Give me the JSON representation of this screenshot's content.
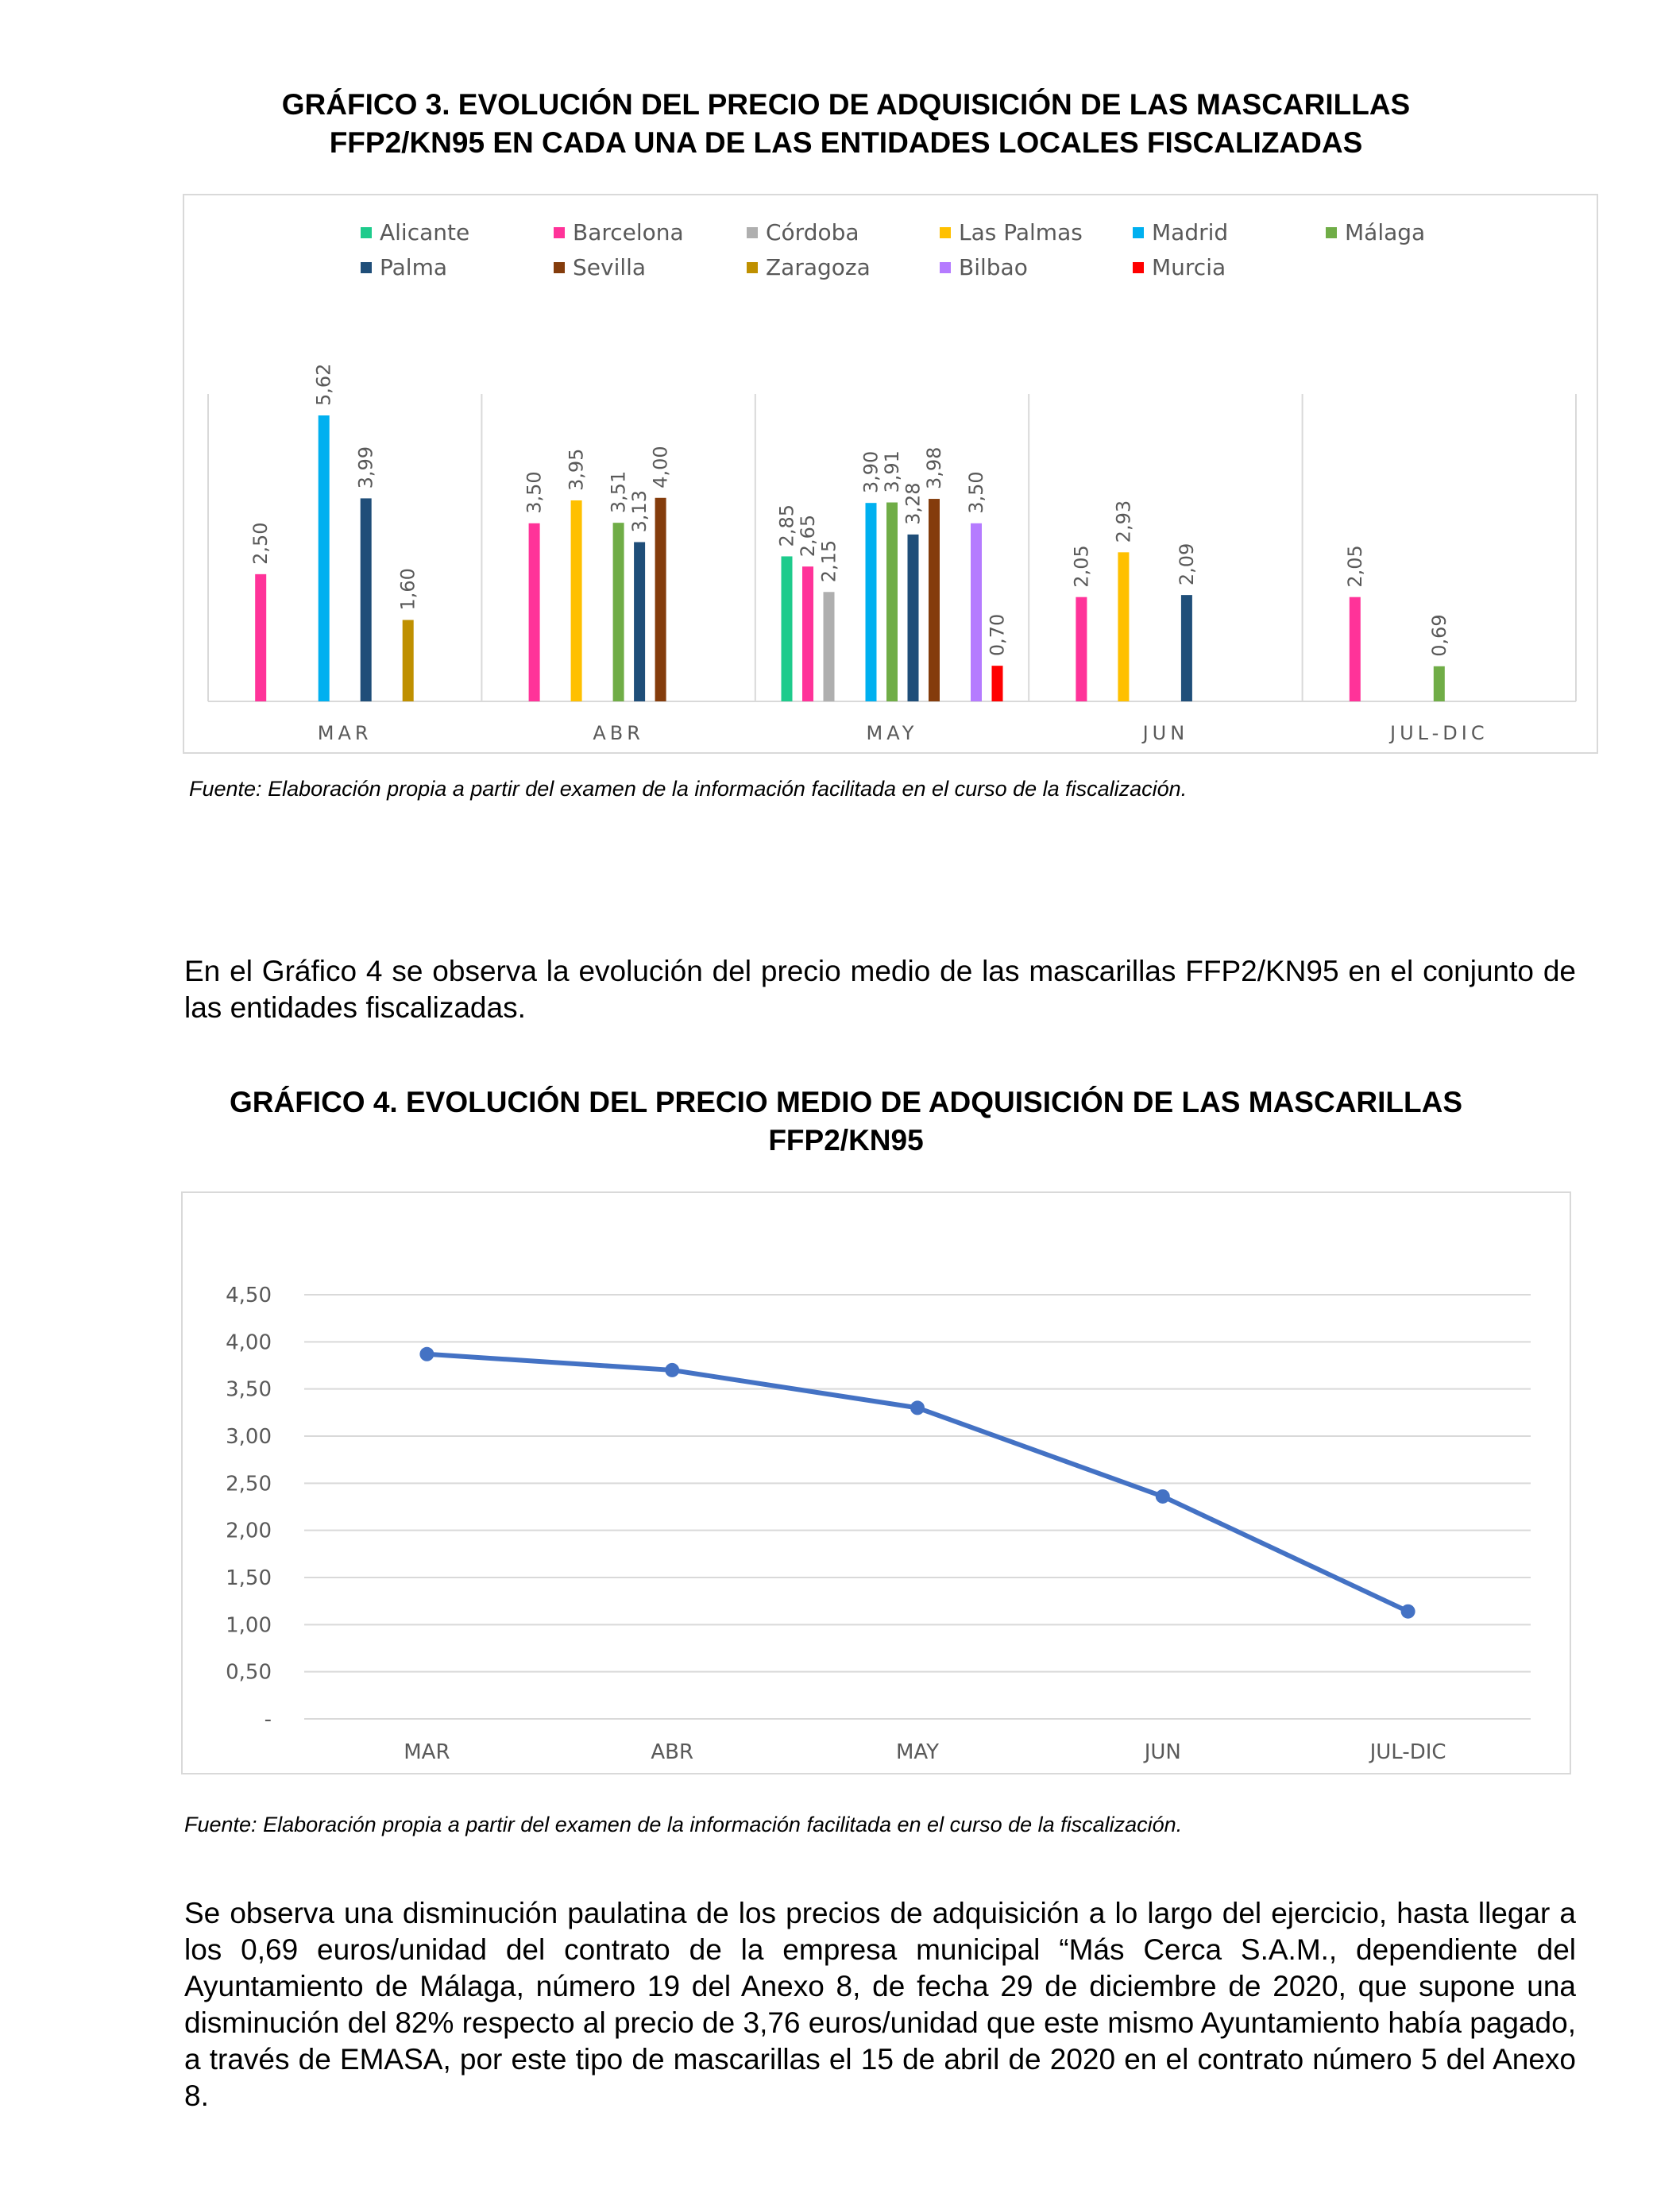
{
  "chart3": {
    "title_line1": "GRÁFICO 3. EVOLUCIÓN DEL PRECIO DE ADQUISICIÓN DE LAS MASCARILLAS",
    "title_line2": "FFP2/KN95 EN CADA UNA DE LAS ENTIDADES LOCALES FISCALIZADAS",
    "source_label": "Fuente:",
    "source_text": " Elaboración propia a partir del examen de la información facilitada en el curso de la fiscalización."
  },
  "intro_paragraph": "En el Gráfico 4 se observa la evolución del precio medio de las mascarillas FFP2/KN95 en el conjunto de las entidades fiscalizadas.",
  "chart4": {
    "title_line1": "GRÁFICO 4. EVOLUCIÓN DEL PRECIO MEDIO DE ADQUISICIÓN DE LAS MASCARILLAS",
    "title_line2": "FFP2/KN95",
    "source_label": "Fuente:",
    "source_text": " Elaboración propia a partir del examen de la información facilitada en el curso de la fiscalización."
  },
  "closing_paragraph": "Se observa una disminución paulatina de los precios de adquisición a lo largo del ejercicio, hasta llegar a los 0,69 euros/unidad del contrato de la empresa municipal “Más Cerca S.A.M., dependiente del Ayuntamiento de Málaga, número 19 del Anexo 8, de fecha 29 de diciembre de 2020, que supone una disminución del 82% respecto al precio de 3,76 euros/unidad que este mismo Ayuntamiento había pagado, a través de EMASA, por este tipo de mascarillas el 15 de abril de 2020 en el contrato número 5 del Anexo 8.",
  "chart_data": [
    {
      "type": "bar",
      "categories": [
        "MAR",
        "ABR",
        "MAY",
        "JUN",
        "JUL-DIC"
      ],
      "legend_position": "top",
      "grid": false,
      "series": [
        {
          "name": "Alicante",
          "color": "#1ECB8C",
          "values": [
            null,
            null,
            2.85,
            null,
            null
          ]
        },
        {
          "name": "Barcelona",
          "color": "#FF3399",
          "values": [
            2.5,
            3.5,
            2.65,
            2.05,
            2.05
          ]
        },
        {
          "name": "Córdoba",
          "color": "#AFAFAF",
          "values": [
            null,
            null,
            2.15,
            null,
            null
          ]
        },
        {
          "name": "Las Palmas",
          "color": "#FFC000",
          "values": [
            null,
            3.95,
            null,
            2.93,
            null
          ]
        },
        {
          "name": "Madrid",
          "color": "#00B0F0",
          "values": [
            5.62,
            null,
            3.9,
            null,
            null
          ]
        },
        {
          "name": "Málaga",
          "color": "#70AD47",
          "values": [
            null,
            3.51,
            3.91,
            null,
            0.69
          ]
        },
        {
          "name": "Palma",
          "color": "#1F4E79",
          "values": [
            3.99,
            3.13,
            3.28,
            2.09,
            null
          ]
        },
        {
          "name": "Sevilla",
          "color": "#843C0C",
          "values": [
            null,
            4.0,
            3.98,
            null,
            null
          ]
        },
        {
          "name": "Zaragoza",
          "color": "#BF9000",
          "values": [
            1.6,
            null,
            null,
            null,
            null
          ]
        },
        {
          "name": "Bilbao",
          "color": "#B57BFF",
          "values": [
            null,
            null,
            3.5,
            null,
            null
          ]
        },
        {
          "name": "Murcia",
          "color": "#FF0000",
          "values": [
            null,
            null,
            0.7,
            null,
            null
          ]
        }
      ],
      "value_labels": [
        [
          "",
          "2,50",
          "",
          "",
          "5,62",
          "",
          "3,99",
          "",
          "1,60",
          "",
          ""
        ],
        [
          "",
          "3,50",
          "",
          "3,95",
          "",
          "3,51",
          "3,13",
          "4,00",
          "",
          "",
          ""
        ],
        [
          "2,85",
          "2,65",
          "2,15",
          "",
          "3,90",
          "3,91",
          "3,28",
          "3,98",
          "",
          "3,50",
          "0,70"
        ],
        [
          "",
          "2,05",
          "",
          "2,93",
          "",
          "",
          "2,09",
          "",
          "",
          "",
          ""
        ],
        [
          "",
          "2,05",
          "",
          "",
          "",
          "0,69",
          "",
          "",
          "",
          "",
          ""
        ]
      ],
      "ylim": [
        0,
        6.0
      ]
    },
    {
      "type": "line",
      "categories": [
        "MAR",
        "ABR",
        "MAY",
        "JUN",
        "JUL-DIC"
      ],
      "series": [
        {
          "values": [
            3.87,
            3.7,
            3.3,
            2.36,
            1.14
          ],
          "color": "#4472C4"
        }
      ],
      "ylim": [
        0,
        4.5
      ],
      "y_ticks": [
        0,
        0.5,
        1.0,
        1.5,
        2.0,
        2.5,
        3.0,
        3.5,
        4.0,
        4.5
      ],
      "y_tick_labels": [
        "-",
        "0,50",
        "1,00",
        "1,50",
        "2,00",
        "2,50",
        "3,00",
        "3,50",
        "4,00",
        "4,50"
      ],
      "grid": true,
      "legend_position": "none"
    }
  ]
}
